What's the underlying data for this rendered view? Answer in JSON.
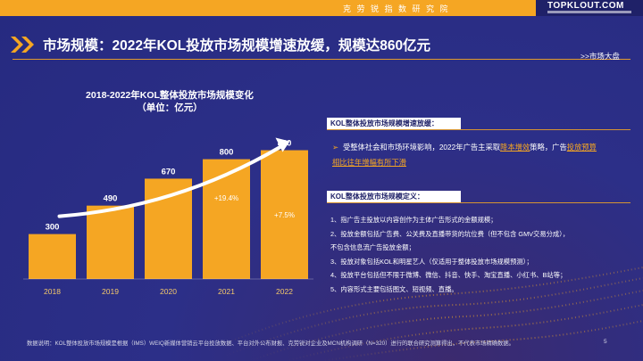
{
  "header": {
    "org_name": "克 劳 锐 指 数 研 究 院",
    "logo_text": "TOPKLOUT.COM"
  },
  "title": "市场规模：2022年KOL投放市场规模增速放缓，规模达860亿元",
  "section_link": ">>市场大盘",
  "chart_title_line1": "2018-2022年KOL整体投放市场规模变化",
  "chart_title_line2": "（单位：亿元）",
  "chart_data": {
    "type": "bar",
    "title": "2018-2022年KOL整体投放市场规模变化",
    "subtitle": "（单位：亿元）",
    "categories": [
      "2018",
      "2019",
      "2020",
      "2021",
      "2022"
    ],
    "values": [
      300,
      490,
      670,
      800,
      860
    ],
    "value_labels": [
      "300",
      "490",
      "670",
      "800",
      "860"
    ],
    "annotations": [
      {
        "between": [
          "2020",
          "2021"
        ],
        "text": "+19.4%"
      },
      {
        "between": [
          "2021",
          "2022"
        ],
        "text": "+7.5%"
      }
    ],
    "colors": {
      "bar": "#f5a623",
      "trend_arrow": "#ffffff",
      "tick": "#f5c96a"
    }
  },
  "panel1": {
    "heading": "KOL整体投放市场规模增速放缓：",
    "bullet_mark": "➢",
    "text_a": "受整体社会和市场环境影响，2022年广告主采取",
    "hl_a": "降本增效",
    "text_b": "策略，广告",
    "hl_b": "投放预算相比往年增幅有所下滑"
  },
  "panel2": {
    "heading": "KOL整体投放市场规模定义：",
    "items": [
      "1、指广告主投放以内容创作为主体广告形式的金额规模；",
      "2、投放金额包括广告费、公关费及直播带货的坑位费（但不包含 GMV交易分成），",
      "不包含信息流广告投放金额；",
      "3、投放对象包括KOL和明星艺人（仅适用于整体投放市场规模预测）；",
      "4、投放平台包括但不限于微博、微信、抖音、快手、淘宝直播、小红书、B站等；",
      "5、内容形式主要包括图文、短视频、直播。"
    ]
  },
  "footer": "数据说明：KOL整体投放市场规模是根据（IMS）WEIQ新媒体营销云平台投放数据、平台对外公布财报、克劳锐对企业及MCN机构调研（N=320）进行的联合研究测算得出，不代表市场精确数据。",
  "page_number": "5",
  "colors": {
    "accent": "#f5a623",
    "background": "#2b2f86"
  }
}
